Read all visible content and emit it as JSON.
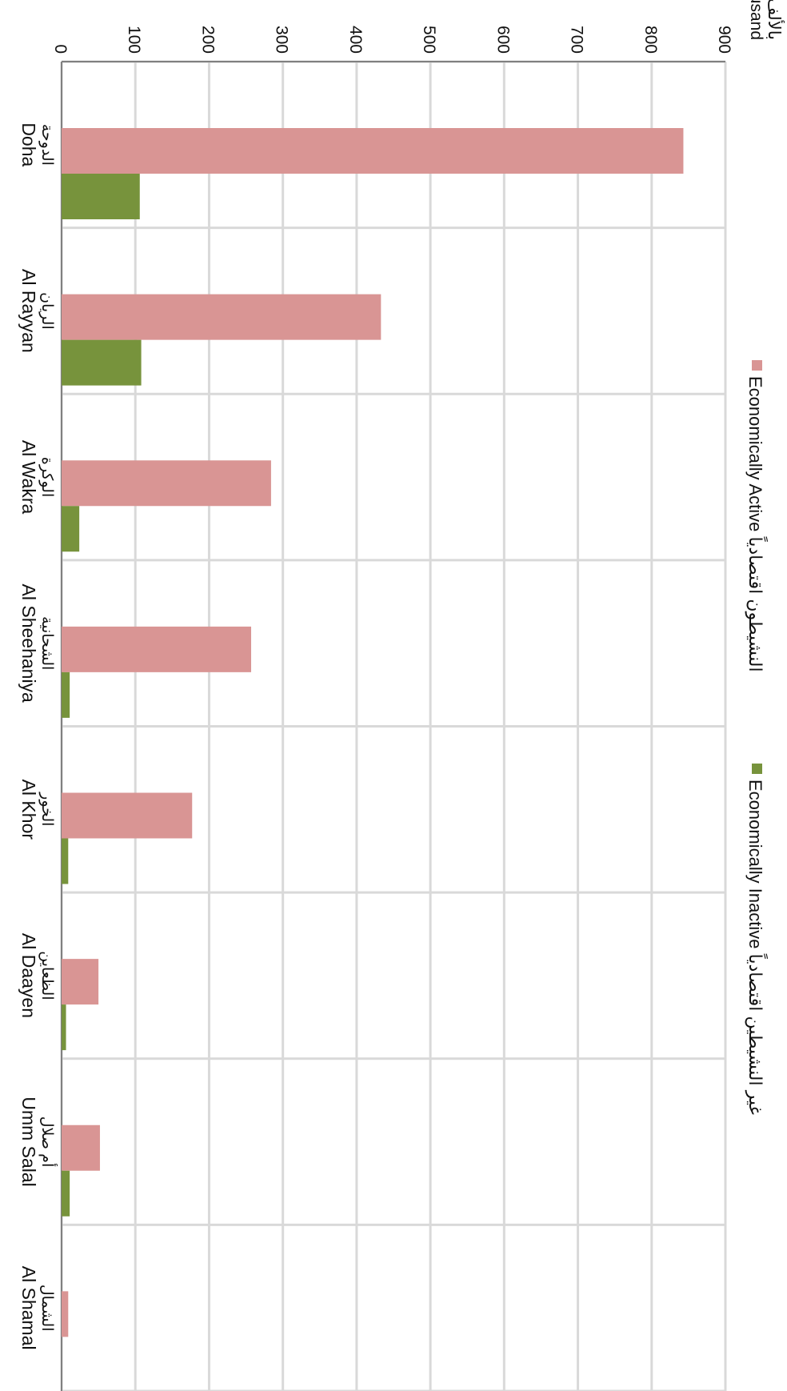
{
  "chart_data": {
    "type": "bar",
    "orientation": "rotated-90-clockwise",
    "unit_label": [
      "بالألف",
      "Thousand"
    ],
    "categories": [
      {
        "ar": "الدوحة",
        "en": "Doha"
      },
      {
        "ar": "الريان",
        "en": "Al Rayyan"
      },
      {
        "ar": "الوكرة",
        "en": "Al Wakra"
      },
      {
        "ar": "الشحانية",
        "en": "Al Sheehaniya"
      },
      {
        "ar": "الخور",
        "en": "Al Khor"
      },
      {
        "ar": "الظعاين",
        "en": "Al Daayen"
      },
      {
        "ar": "أم صلال",
        "en": "Umm Salal"
      },
      {
        "ar": "الشمال",
        "en": "Al Shamal"
      }
    ],
    "series": [
      {
        "name": "Economically Active النشيطون اقتصادياً",
        "color": "#d99594",
        "values": [
          843,
          433,
          284,
          257,
          177,
          50,
          52,
          9
        ]
      },
      {
        "name": "Economically Inactive غير النشيطين اقتصادياً",
        "color": "#77933c",
        "values": [
          106,
          108,
          24,
          11,
          9,
          6,
          11,
          0
        ]
      }
    ],
    "ylim": [
      0,
      900
    ],
    "yticks": [
      0,
      100,
      200,
      300,
      400,
      500,
      600,
      700,
      800,
      900
    ],
    "grid": true,
    "legend_position": "top"
  }
}
